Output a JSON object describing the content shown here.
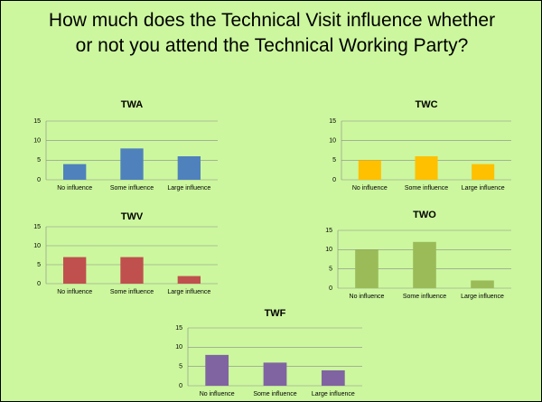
{
  "title": "How much does the Technical Visit influence whether or not you attend the Technical Working Party?",
  "chart_data": [
    {
      "type": "bar",
      "title": "TWA",
      "categories": [
        "No influence",
        "Some influence",
        "Large influence"
      ],
      "values": [
        4,
        8,
        6
      ],
      "color": "#4f81bd",
      "ylim": [
        0,
        15
      ],
      "yticks": [
        0,
        5,
        10,
        15
      ],
      "grid": true
    },
    {
      "type": "bar",
      "title": "TWC",
      "categories": [
        "No influence",
        "Some influence",
        "Large influence"
      ],
      "values": [
        5,
        6,
        4
      ],
      "color": "#ffc000",
      "ylim": [
        0,
        15
      ],
      "yticks": [
        0,
        5,
        10,
        15
      ],
      "grid": true
    },
    {
      "type": "bar",
      "title": "TWV",
      "categories": [
        "No influence",
        "Some influence",
        "Large influence"
      ],
      "values": [
        7,
        7,
        2
      ],
      "color": "#c0504d",
      "ylim": [
        0,
        15
      ],
      "yticks": [
        0,
        5,
        10,
        15
      ],
      "grid": true
    },
    {
      "type": "bar",
      "title": "TWO",
      "categories": [
        "No influence",
        "Some influence",
        "Large influence"
      ],
      "values": [
        10,
        12,
        2
      ],
      "color": "#9bbb59",
      "ylim": [
        0,
        15
      ],
      "yticks": [
        0,
        5,
        10,
        15
      ],
      "grid": true
    },
    {
      "type": "bar",
      "title": "TWF",
      "categories": [
        "No influence",
        "Some influence",
        "Large influence"
      ],
      "values": [
        8,
        6,
        4
      ],
      "color": "#8064a2",
      "ylim": [
        0,
        15
      ],
      "yticks": [
        0,
        5,
        10,
        15
      ],
      "grid": true
    }
  ]
}
